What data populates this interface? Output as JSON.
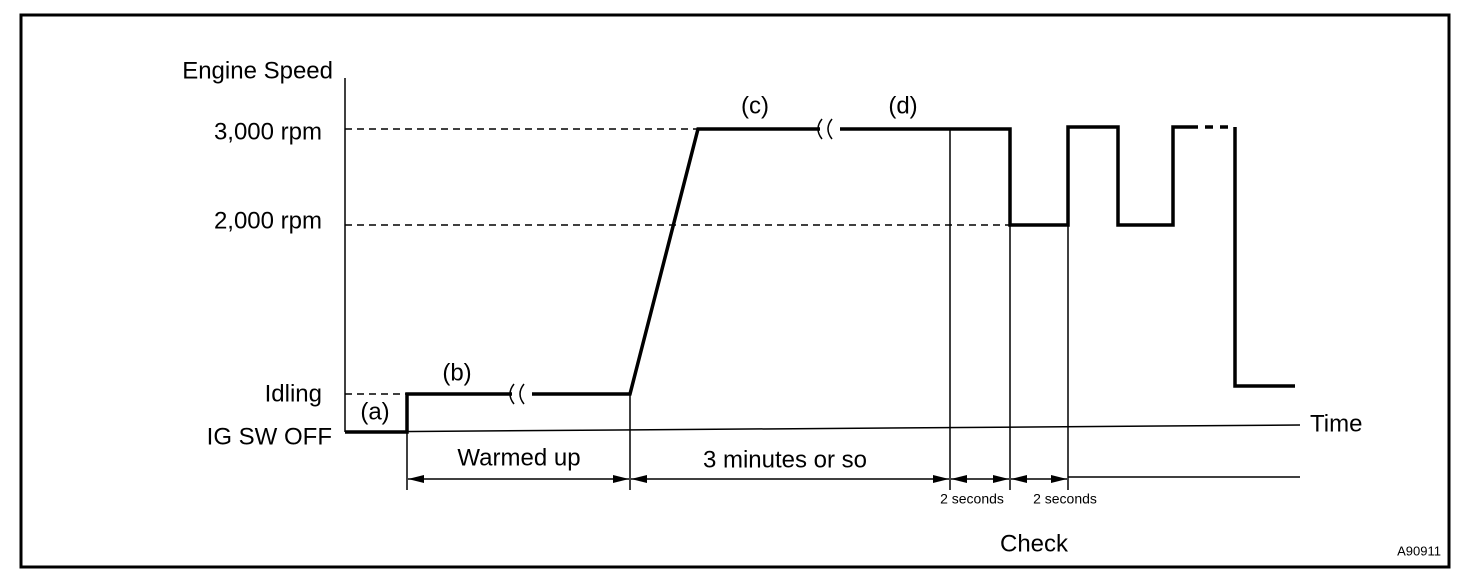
{
  "axis": {
    "y_label": "Engine Speed",
    "x_label": "Time"
  },
  "levels": [
    "3,000 rpm",
    "2,000 rpm",
    "Idling",
    "IG SW OFF"
  ],
  "phases": [
    "(a)",
    "(b)",
    "(c)",
    "(d)"
  ],
  "intervals": [
    "Warmed up",
    "3 minutes or so",
    "2 seconds",
    "2 seconds"
  ],
  "check_label": "Check",
  "figure_id": "A90911"
}
